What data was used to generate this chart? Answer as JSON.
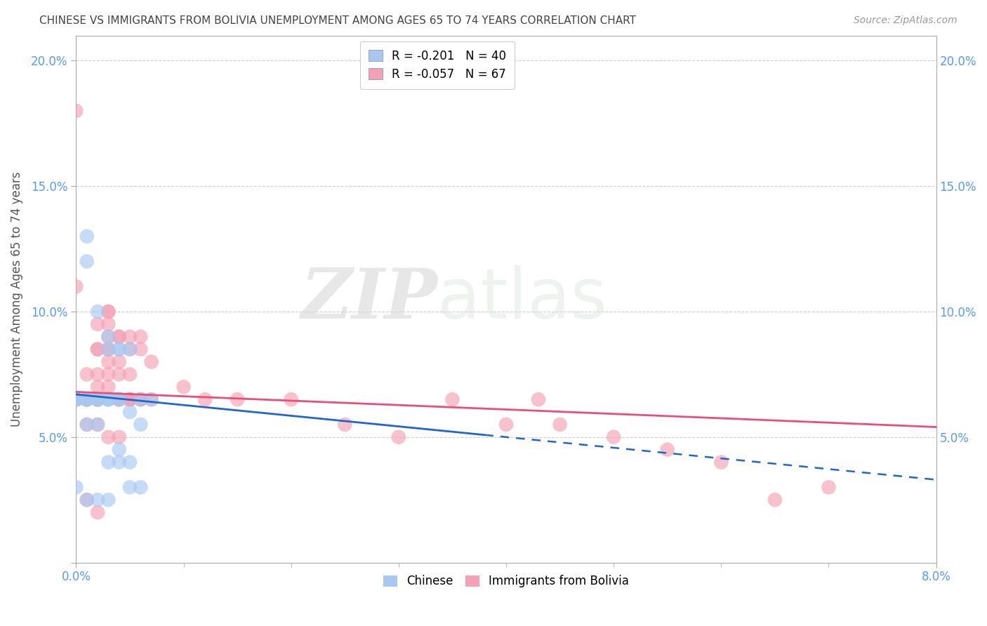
{
  "title": "CHINESE VS IMMIGRANTS FROM BOLIVIA UNEMPLOYMENT AMONG AGES 65 TO 74 YEARS CORRELATION CHART",
  "source": "Source: ZipAtlas.com",
  "xlabel": "",
  "ylabel": "Unemployment Among Ages 65 to 74 years",
  "xlim": [
    0.0,
    0.08
  ],
  "ylim": [
    0.0,
    0.21
  ],
  "xtick_positions": [
    0.0,
    0.08
  ],
  "xtick_labels": [
    "0.0%",
    "8.0%"
  ],
  "ytick_positions": [
    0.0,
    0.05,
    0.1,
    0.15,
    0.2
  ],
  "ytick_labels": [
    "",
    "5.0%",
    "10.0%",
    "15.0%",
    "20.0%"
  ],
  "legend_r_n": [
    {
      "label": "R = -0.201   N = 40",
      "color": "#a8c8f0"
    },
    {
      "label": "R = -0.057   N = 67",
      "color": "#f4a0b5"
    }
  ],
  "series_chinese": {
    "marker_color": "#a8c8f0",
    "x": [
      0.0,
      0.0,
      0.0,
      0.001,
      0.001,
      0.001,
      0.001,
      0.002,
      0.002,
      0.002,
      0.002,
      0.003,
      0.003,
      0.003,
      0.003,
      0.004,
      0.004,
      0.004,
      0.005,
      0.005,
      0.006,
      0.006,
      0.007,
      0.0,
      0.001,
      0.001,
      0.002,
      0.002,
      0.003,
      0.003,
      0.004,
      0.004,
      0.005,
      0.005,
      0.006,
      0.0,
      0.001,
      0.002,
      0.003,
      0.004
    ],
    "y": [
      0.065,
      0.065,
      0.065,
      0.13,
      0.12,
      0.065,
      0.065,
      0.1,
      0.065,
      0.065,
      0.065,
      0.09,
      0.085,
      0.065,
      0.065,
      0.085,
      0.065,
      0.065,
      0.085,
      0.06,
      0.065,
      0.055,
      0.065,
      0.065,
      0.065,
      0.055,
      0.065,
      0.055,
      0.065,
      0.04,
      0.045,
      0.04,
      0.04,
      0.03,
      0.03,
      0.03,
      0.025,
      0.025,
      0.025,
      0.085
    ]
  },
  "series_bolivia": {
    "marker_color": "#f4a0b5",
    "x": [
      0.0,
      0.0,
      0.0,
      0.0,
      0.001,
      0.001,
      0.001,
      0.001,
      0.001,
      0.002,
      0.002,
      0.002,
      0.002,
      0.002,
      0.002,
      0.003,
      0.003,
      0.003,
      0.003,
      0.003,
      0.003,
      0.003,
      0.004,
      0.004,
      0.004,
      0.004,
      0.004,
      0.004,
      0.005,
      0.005,
      0.005,
      0.005,
      0.006,
      0.006,
      0.006,
      0.007,
      0.007,
      0.01,
      0.012,
      0.015,
      0.02,
      0.025,
      0.03,
      0.035,
      0.04,
      0.043,
      0.045,
      0.05,
      0.055,
      0.06,
      0.0,
      0.001,
      0.002,
      0.003,
      0.004,
      0.005,
      0.001,
      0.002,
      0.003,
      0.004,
      0.005,
      0.006,
      0.003,
      0.065,
      0.07,
      0.001,
      0.002
    ],
    "y": [
      0.18,
      0.11,
      0.065,
      0.065,
      0.065,
      0.065,
      0.065,
      0.065,
      0.065,
      0.095,
      0.085,
      0.085,
      0.075,
      0.065,
      0.065,
      0.1,
      0.095,
      0.09,
      0.085,
      0.085,
      0.08,
      0.075,
      0.09,
      0.09,
      0.08,
      0.075,
      0.065,
      0.065,
      0.09,
      0.085,
      0.075,
      0.065,
      0.09,
      0.085,
      0.065,
      0.08,
      0.065,
      0.07,
      0.065,
      0.065,
      0.065,
      0.055,
      0.05,
      0.065,
      0.055,
      0.065,
      0.055,
      0.05,
      0.045,
      0.04,
      0.065,
      0.075,
      0.07,
      0.07,
      0.065,
      0.065,
      0.055,
      0.055,
      0.05,
      0.05,
      0.065,
      0.065,
      0.1,
      0.025,
      0.03,
      0.025,
      0.02
    ]
  },
  "trend_chinese": {
    "x_start": 0.0,
    "x_end": 0.08,
    "y_start": 0.067,
    "y_end": 0.033,
    "color": "#2266cc",
    "solid_end": 0.038
  },
  "trend_bolivia": {
    "x_start": 0.0,
    "x_end": 0.08,
    "y_start": 0.068,
    "y_end": 0.054,
    "color": "#e8507a"
  },
  "watermark_zip": "ZIP",
  "watermark_atlas": "atlas",
  "background_color": "#ffffff",
  "grid_color": "#c8c8c8",
  "title_color": "#444444",
  "axis_color": "#5599ff"
}
